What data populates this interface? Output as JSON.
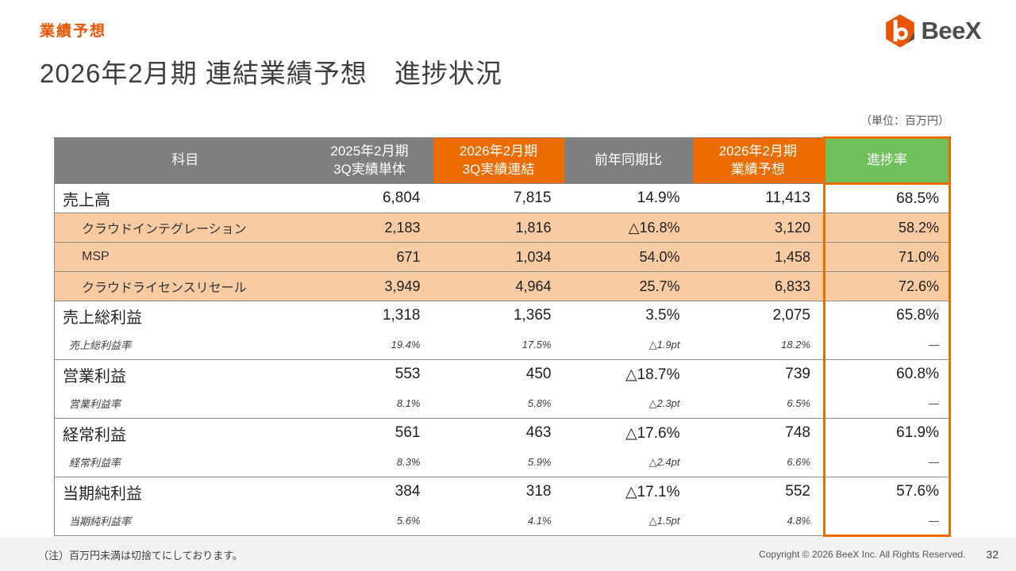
{
  "page": {
    "section_label": "業績予想",
    "title": "2026年2月期 連結業績予想　進捗状況",
    "unit_note": "（単位：百万円）",
    "footnote": "（注）百万円未満は切捨てにしております。",
    "copyright": "Copyright © 2026 BeeX Inc. All Rights Reserved.",
    "page_number": "32",
    "logo_text": "BeeX"
  },
  "colors": {
    "accent_orange": "#ed6c00",
    "brand_orange": "#e95504",
    "header_gray": "#7f7f7f",
    "progress_green": "#6fbf5a",
    "segment_row_bg": "#f9cba3"
  },
  "table": {
    "headers": [
      "科目",
      "2025年2月期\n3Q実績単体",
      "2026年2月期\n3Q実績連結",
      "前年同期比",
      "2026年2月期\n業績予想",
      "進捗率"
    ],
    "rows": [
      {
        "type": "main",
        "label": "売上高",
        "values": [
          "6,804",
          "7,815",
          "14.9%",
          "11,413",
          "68.5%"
        ]
      },
      {
        "type": "segment",
        "label": "クラウドインテグレーション",
        "values": [
          "2,183",
          "1,816",
          "△16.8%",
          "3,120",
          "58.2%"
        ]
      },
      {
        "type": "segment",
        "label": "MSP",
        "values": [
          "671",
          "1,034",
          "54.0%",
          "1,458",
          "71.0%"
        ]
      },
      {
        "type": "segment",
        "label": "クラウドライセンスリセール",
        "values": [
          "3,949",
          "4,964",
          "25.7%",
          "6,833",
          "72.6%"
        ]
      },
      {
        "type": "main",
        "label": "売上総利益",
        "values": [
          "1,318",
          "1,365",
          "3.5%",
          "2,075",
          "65.8%"
        ]
      },
      {
        "type": "rate",
        "label": "売上総利益率",
        "values": [
          "19.4%",
          "17.5%",
          "△1.9pt",
          "18.2%",
          "—"
        ]
      },
      {
        "type": "main",
        "label": "営業利益",
        "values": [
          "553",
          "450",
          "△18.7%",
          "739",
          "60.8%"
        ]
      },
      {
        "type": "rate",
        "label": "営業利益率",
        "values": [
          "8.1%",
          "5.8%",
          "△2.3pt",
          "6.5%",
          "—"
        ]
      },
      {
        "type": "main",
        "label": "経常利益",
        "values": [
          "561",
          "463",
          "△17.6%",
          "748",
          "61.9%"
        ]
      },
      {
        "type": "rate",
        "label": "経常利益率",
        "values": [
          "8.3%",
          "5.9%",
          "△2.4pt",
          "6.6%",
          "—"
        ]
      },
      {
        "type": "main",
        "label": "当期純利益",
        "values": [
          "384",
          "318",
          "△17.1%",
          "552",
          "57.6%"
        ]
      },
      {
        "type": "rate",
        "label": "当期純利益率",
        "values": [
          "5.6%",
          "4.1%",
          "△1.5pt",
          "4.8%",
          "—"
        ]
      }
    ]
  }
}
